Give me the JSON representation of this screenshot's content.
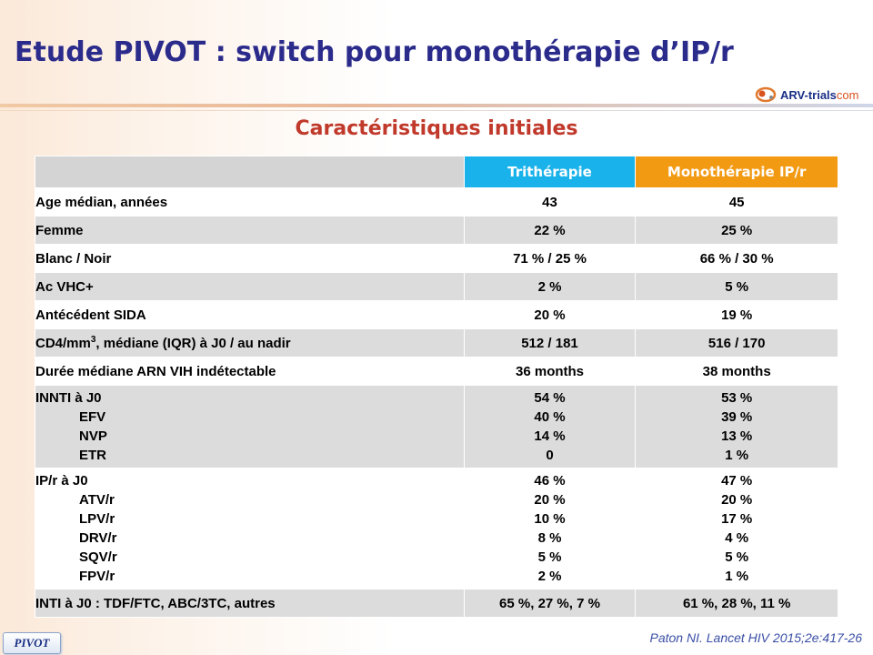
{
  "slide": {
    "title": "Etude PIVOT : switch pour monothérapie d’IP/r",
    "subtitle": "Caractéristiques initiales",
    "logo": {
      "main": "ARV-trials",
      "suffix": "com"
    },
    "badge": "PIVOT",
    "citation": "Paton NI. Lancet HIV 2015;2e:417-26",
    "colors": {
      "title": "#2b2b8c",
      "subtitle": "#c0392b",
      "tri_header": "#19b2ea",
      "mono_header": "#f39a13",
      "row_shade": "#dcdcdc"
    }
  },
  "table": {
    "headers": {
      "col1": "",
      "tri": "Trithérapie",
      "mono": "Monothérapie IP/r"
    },
    "rows": [
      {
        "label": "Age médian, années",
        "tri": "43",
        "mono": "45"
      },
      {
        "label": "Femme",
        "tri": "22 %",
        "mono": "25 %"
      },
      {
        "label": "Blanc / Noir",
        "tri": "71 % / 25 %",
        "mono": "66 % / 30 %"
      },
      {
        "label": "Ac VHC+",
        "tri": "2 %",
        "mono": "5 %"
      },
      {
        "label": "Antécédent SIDA",
        "tri": "20 %",
        "mono": "19 %"
      },
      {
        "label_pre": "CD4/mm",
        "label_sup": "3",
        "label_post": ", médiane (IQR) à J0 / au nadir",
        "tri": "512 / 181",
        "mono": "516 / 170"
      },
      {
        "label": "Durée médiane ARN VIH indétectable",
        "tri": "36 months",
        "mono": "38 months"
      },
      {
        "label": "INNTI à J0",
        "subs": [
          "EFV",
          "NVP",
          "ETR"
        ],
        "tri": [
          "54 %",
          "40 %",
          "14 %",
          "0"
        ],
        "mono": [
          "53 %",
          "39 %",
          "13 %",
          "1 %"
        ]
      },
      {
        "label": "IP/r à J0",
        "subs": [
          "ATV/r",
          "LPV/r",
          "DRV/r",
          "SQV/r",
          "FPV/r"
        ],
        "tri": [
          "46 %",
          "20 %",
          "10 %",
          "8 %",
          "5 %",
          "2 %"
        ],
        "mono": [
          "47 %",
          "20 %",
          "17 %",
          "4 %",
          "5 %",
          "1 %"
        ]
      },
      {
        "label": "INTI à J0 : TDF/FTC, ABC/3TC, autres",
        "tri": "65 %, 27 %, 7 %",
        "mono": "61 %, 28 %, 11 %"
      }
    ]
  }
}
